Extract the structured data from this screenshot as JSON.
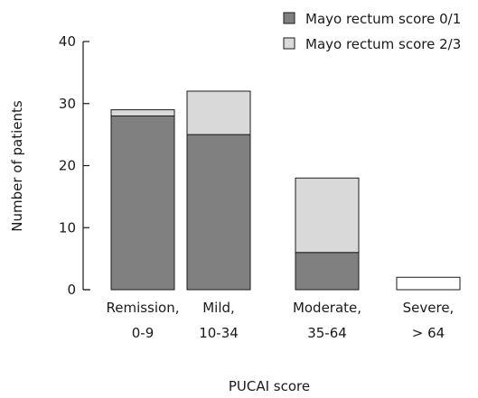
{
  "chart_data": {
    "type": "bar",
    "stacked": true,
    "categories": [
      [
        "Remission,",
        "0-9"
      ],
      [
        "Mild,",
        "10-34"
      ],
      [
        "Moderate,",
        "35-64"
      ],
      [
        "Severe,",
        "> 64"
      ]
    ],
    "series": [
      {
        "name": "Mayo rectum score 0/1",
        "values": [
          28,
          25,
          6,
          0
        ],
        "color": "#808080"
      },
      {
        "name": "Mayo rectum score 2/3",
        "values": [
          1,
          7,
          12,
          0
        ],
        "color": "#d9d9d9"
      }
    ],
    "totals_outline_only": [
      0,
      0,
      0,
      2
    ],
    "xlabel": "PUCAI score",
    "ylabel": "Number of patients",
    "ylim": [
      0,
      40
    ],
    "yticks": [
      0,
      10,
      20,
      30,
      40
    ],
    "grid": false,
    "legend_position": "top-right"
  }
}
